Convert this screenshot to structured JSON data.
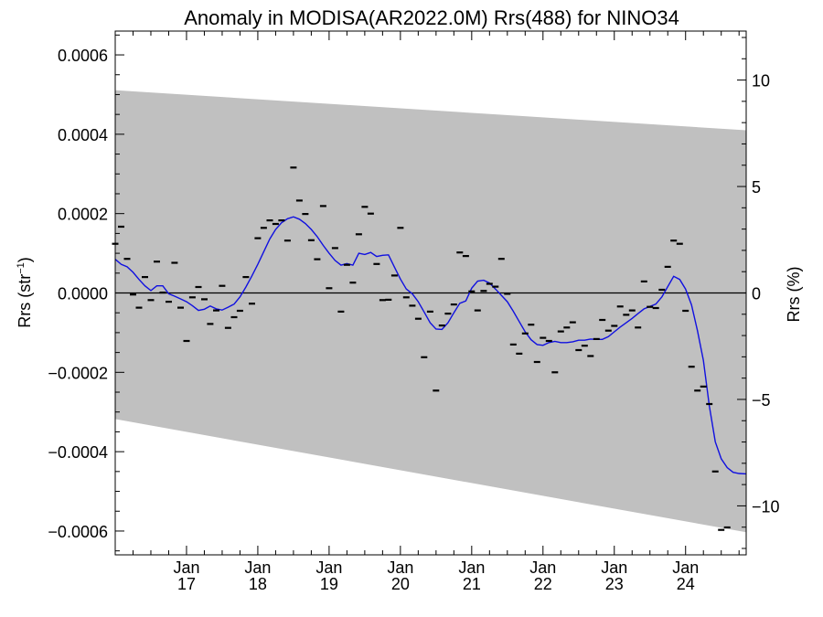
{
  "chart_data": {
    "type": "scatter",
    "title": "Anomaly in MODISA(AR2022.0M) Rrs(488) for NINO34",
    "ylabel_left": "Rrs (str",
    "ylabel_left_sup": "−1",
    "ylabel_left_close": ")",
    "ylabel_right": "Rrs (%)",
    "ylim_left": [
      -0.00066,
      0.00066
    ],
    "ylim_right": [
      -12.3,
      12.3
    ],
    "xlim": [
      2016.0,
      2024.85
    ],
    "grid": false,
    "zero_line": true,
    "yticks_left": [
      {
        "v": 0.0006,
        "label": "0.0006"
      },
      {
        "v": 0.0004,
        "label": "0.0004"
      },
      {
        "v": 0.0002,
        "label": "0.0002"
      },
      {
        "v": 0.0,
        "label": "0.0000"
      },
      {
        "v": -0.0002,
        "label": "−0.0002"
      },
      {
        "v": -0.0004,
        "label": "−0.0004"
      },
      {
        "v": -0.0006,
        "label": "−0.0006"
      }
    ],
    "yticks_right": [
      {
        "v": 10,
        "label": "10"
      },
      {
        "v": 5,
        "label": "5"
      },
      {
        "v": 0,
        "label": "0"
      },
      {
        "v": -5,
        "label": "−5"
      },
      {
        "v": -10,
        "label": "−10"
      }
    ],
    "xticks": [
      {
        "v": 2017.0,
        "month": "Jan",
        "year": "17"
      },
      {
        "v": 2018.0,
        "month": "Jan",
        "year": "18"
      },
      {
        "v": 2019.0,
        "month": "Jan",
        "year": "19"
      },
      {
        "v": 2020.0,
        "month": "Jan",
        "year": "20"
      },
      {
        "v": 2021.0,
        "month": "Jan",
        "year": "21"
      },
      {
        "v": 2022.0,
        "month": "Jan",
        "year": "22"
      },
      {
        "v": 2023.0,
        "month": "Jan",
        "year": "23"
      },
      {
        "v": 2024.0,
        "month": "Jan",
        "year": "24"
      }
    ],
    "band": {
      "upper": [
        [
          2016.0,
          0.000511
        ],
        [
          2024.85,
          0.00041
        ]
      ],
      "lower": [
        [
          2016.0,
          -0.000318
        ],
        [
          2024.85,
          -0.000603
        ]
      ],
      "color": "#c0c0c0"
    },
    "monthly_points": [
      [
        2016.0,
        0.000124
      ],
      [
        2016.083,
        0.000167
      ],
      [
        2016.167,
        8.6e-05
      ],
      [
        2016.25,
        -4e-06
      ],
      [
        2016.333,
        -3.7e-05
      ],
      [
        2016.417,
        4e-05
      ],
      [
        2016.5,
        -1.8e-05
      ],
      [
        2016.583,
        7.9e-05
      ],
      [
        2016.667,
        1e-06
      ],
      [
        2016.75,
        -2.2e-05
      ],
      [
        2016.833,
        7.6e-05
      ],
      [
        2016.917,
        -3.7e-05
      ],
      [
        2017.0,
        -0.000121
      ],
      [
        2017.083,
        -1.1e-05
      ],
      [
        2017.167,
        1.5e-05
      ],
      [
        2017.25,
        -1.6e-05
      ],
      [
        2017.333,
        -7.8e-05
      ],
      [
        2017.417,
        -4.4e-05
      ],
      [
        2017.5,
        1.8e-05
      ],
      [
        2017.583,
        -8.8e-05
      ],
      [
        2017.667,
        -6.1e-05
      ],
      [
        2017.75,
        -4.5e-05
      ],
      [
        2017.833,
        4e-05
      ],
      [
        2017.917,
        -2.7e-05
      ],
      [
        2018.0,
        0.000138
      ],
      [
        2018.083,
        0.000164
      ],
      [
        2018.167,
        0.000183
      ],
      [
        2018.25,
        0.000174
      ],
      [
        2018.333,
        0.000183
      ],
      [
        2018.417,
        0.000132
      ],
      [
        2018.5,
        0.000316
      ],
      [
        2018.583,
        0.000233
      ],
      [
        2018.667,
        0.000199
      ],
      [
        2018.75,
        0.000133
      ],
      [
        2018.833,
        8.5e-05
      ],
      [
        2018.917,
        0.000219
      ],
      [
        2019.0,
        1.2e-05
      ],
      [
        2019.083,
        0.000113
      ],
      [
        2019.167,
        -4.7e-05
      ],
      [
        2019.25,
        7.1e-05
      ],
      [
        2019.333,
        2.6e-05
      ],
      [
        2019.417,
        0.000148
      ],
      [
        2019.5,
        0.000217
      ],
      [
        2019.583,
        0.0002
      ],
      [
        2019.667,
        7.3e-05
      ],
      [
        2019.75,
        -1.8e-05
      ],
      [
        2019.833,
        -1.7e-05
      ],
      [
        2019.917,
        4.4e-05
      ],
      [
        2020.0,
        0.000164
      ],
      [
        2020.083,
        -1.1e-05
      ],
      [
        2020.167,
        -3.2e-05
      ],
      [
        2020.25,
        -6.5e-05
      ],
      [
        2020.333,
        -0.000162
      ],
      [
        2020.417,
        -4.7e-05
      ],
      [
        2020.5,
        -0.000246
      ],
      [
        2020.583,
        -8.2e-05
      ],
      [
        2020.667,
        -5.2e-05
      ],
      [
        2020.75,
        -2.9e-05
      ],
      [
        2020.833,
        0.000102
      ],
      [
        2020.917,
        9.3e-05
      ],
      [
        2021.0,
        4e-06
      ],
      [
        2021.083,
        -4.4e-05
      ],
      [
        2021.167,
        5e-06
      ],
      [
        2021.25,
        2.3e-05
      ],
      [
        2021.333,
        1.6e-05
      ],
      [
        2021.417,
        8.6e-05
      ],
      [
        2021.5,
        -2e-06
      ],
      [
        2021.583,
        -0.00013
      ],
      [
        2021.667,
        -0.000153
      ],
      [
        2021.75,
        -0.000102
      ],
      [
        2021.833,
        -8e-05
      ],
      [
        2021.917,
        -0.000174
      ],
      [
        2022.0,
        -0.000113
      ],
      [
        2022.083,
        -0.000121
      ],
      [
        2022.167,
        -0.0002
      ],
      [
        2022.25,
        -9.7e-05
      ],
      [
        2022.333,
        -8.7e-05
      ],
      [
        2022.417,
        -7.4e-05
      ],
      [
        2022.5,
        -0.000144
      ],
      [
        2022.583,
        -0.000133
      ],
      [
        2022.667,
        -0.000159
      ],
      [
        2022.75,
        -0.000116
      ],
      [
        2022.833,
        -6.8e-05
      ],
      [
        2022.917,
        -9.5e-05
      ],
      [
        2023.0,
        -8.3e-05
      ],
      [
        2023.083,
        -3.4e-05
      ],
      [
        2023.167,
        -5.5e-05
      ],
      [
        2023.25,
        -4.4e-05
      ],
      [
        2023.333,
        -8.7e-05
      ],
      [
        2023.417,
        2.9e-05
      ],
      [
        2023.5,
        -3.5e-05
      ],
      [
        2023.583,
        -3.8e-05
      ],
      [
        2023.667,
        8e-06
      ],
      [
        2023.75,
        6.6e-05
      ],
      [
        2023.833,
        0.000132
      ],
      [
        2023.917,
        0.000124
      ],
      [
        2024.0,
        -4.5e-05
      ],
      [
        2024.083,
        -0.000186
      ],
      [
        2024.167,
        -0.000246
      ],
      [
        2024.25,
        -0.000236
      ],
      [
        2024.333,
        -0.00028
      ],
      [
        2024.417,
        -0.00045
      ],
      [
        2024.5,
        -0.000597
      ],
      [
        2024.583,
        -0.000591
      ]
    ],
    "running_mean": {
      "color": "#1010e0",
      "points": [
        [
          2016.0,
          8.5e-05
        ],
        [
          2016.083,
          7.2e-05
        ],
        [
          2016.167,
          6.6e-05
        ],
        [
          2016.25,
          5.2e-05
        ],
        [
          2016.333,
          3.4e-05
        ],
        [
          2016.417,
          1.8e-05
        ],
        [
          2016.5,
          6e-06
        ],
        [
          2016.583,
          1.8e-05
        ],
        [
          2016.667,
          1.8e-05
        ],
        [
          2016.75,
          -2e-06
        ],
        [
          2016.833,
          -8e-06
        ],
        [
          2016.917,
          -1.5e-05
        ],
        [
          2017.0,
          -2.2e-05
        ],
        [
          2017.083,
          -3.2e-05
        ],
        [
          2017.167,
          -4.4e-05
        ],
        [
          2017.25,
          -4.1e-05
        ],
        [
          2017.333,
          -3.3e-05
        ],
        [
          2017.417,
          -4e-05
        ],
        [
          2017.5,
          -4.3e-05
        ],
        [
          2017.583,
          -3.6e-05
        ],
        [
          2017.667,
          -2.8e-05
        ],
        [
          2017.75,
          -1e-05
        ],
        [
          2017.833,
          1.5e-05
        ],
        [
          2017.917,
          4.3e-05
        ],
        [
          2018.0,
          7.2e-05
        ],
        [
          2018.083,
          0.000104
        ],
        [
          2018.167,
          0.000136
        ],
        [
          2018.25,
          0.00016
        ],
        [
          2018.333,
          0.000177
        ],
        [
          2018.417,
          0.000187
        ],
        [
          2018.5,
          0.000192
        ],
        [
          2018.583,
          0.000186
        ],
        [
          2018.667,
          0.000175
        ],
        [
          2018.75,
          0.00016
        ],
        [
          2018.833,
          0.000142
        ],
        [
          2018.917,
          0.00012
        ],
        [
          2019.0,
          0.0001
        ],
        [
          2019.083,
          8.2e-05
        ],
        [
          2019.167,
          7e-05
        ],
        [
          2019.25,
          7.4e-05
        ],
        [
          2019.333,
          7e-05
        ],
        [
          2019.417,
          0.0001
        ],
        [
          2019.5,
          9.7e-05
        ],
        [
          2019.583,
          0.000102
        ],
        [
          2019.667,
          9.2e-05
        ],
        [
          2019.75,
          9.5e-05
        ],
        [
          2019.833,
          9.6e-05
        ],
        [
          2019.917,
          6.5e-05
        ],
        [
          2020.0,
          3.5e-05
        ],
        [
          2020.083,
          1e-05
        ],
        [
          2020.167,
          -2e-06
        ],
        [
          2020.25,
          -2.2e-05
        ],
        [
          2020.333,
          -4.8e-05
        ],
        [
          2020.417,
          -7.5e-05
        ],
        [
          2020.5,
          -9.1e-05
        ],
        [
          2020.583,
          -9.2e-05
        ],
        [
          2020.667,
          -7.5e-05
        ],
        [
          2020.75,
          -5e-05
        ],
        [
          2020.833,
          -2.6e-05
        ],
        [
          2020.917,
          -2e-05
        ],
        [
          2021.0,
          1.2e-05
        ],
        [
          2021.083,
          3e-05
        ],
        [
          2021.167,
          3.2e-05
        ],
        [
          2021.25,
          2.5e-05
        ],
        [
          2021.333,
          1e-05
        ],
        [
          2021.417,
          -6e-06
        ],
        [
          2021.5,
          -2.2e-05
        ],
        [
          2021.583,
          -4.6e-05
        ],
        [
          2021.667,
          -7.2e-05
        ],
        [
          2021.75,
          -9.8e-05
        ],
        [
          2021.833,
          -0.000118
        ],
        [
          2021.917,
          -0.00013
        ],
        [
          2022.0,
          -0.000132
        ],
        [
          2022.083,
          -0.000125
        ],
        [
          2022.167,
          -0.000122
        ],
        [
          2022.25,
          -0.000125
        ],
        [
          2022.333,
          -0.000125
        ],
        [
          2022.417,
          -0.000123
        ],
        [
          2022.5,
          -0.000119
        ],
        [
          2022.583,
          -0.000119
        ],
        [
          2022.667,
          -0.000116
        ],
        [
          2022.75,
          -0.000117
        ],
        [
          2022.833,
          -0.000117
        ],
        [
          2022.917,
          -0.00011
        ],
        [
          2023.0,
          -9.8e-05
        ],
        [
          2023.083,
          -8.6e-05
        ],
        [
          2023.167,
          -7.5e-05
        ],
        [
          2023.25,
          -6.4e-05
        ],
        [
          2023.333,
          -5.2e-05
        ],
        [
          2023.417,
          -4e-05
        ],
        [
          2023.5,
          -3.4e-05
        ],
        [
          2023.583,
          -2.8e-05
        ],
        [
          2023.667,
          -1e-05
        ],
        [
          2023.75,
          1.6e-05
        ],
        [
          2023.833,
          4.2e-05
        ],
        [
          2023.917,
          3.4e-05
        ],
        [
          2024.0,
          1e-05
        ],
        [
          2024.083,
          -3e-05
        ],
        [
          2024.167,
          -9.5e-05
        ],
        [
          2024.25,
          -0.00017
        ],
        [
          2024.333,
          -0.000285
        ],
        [
          2024.417,
          -0.000375
        ],
        [
          2024.5,
          -0.000418
        ],
        [
          2024.583,
          -0.00044
        ],
        [
          2024.667,
          -0.000452
        ],
        [
          2024.75,
          -0.000455
        ],
        [
          2024.85,
          -0.000456
        ]
      ]
    }
  }
}
